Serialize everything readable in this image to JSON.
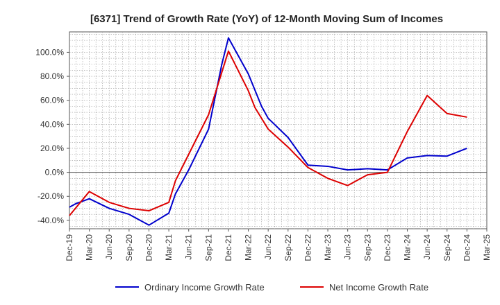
{
  "chart_data": {
    "type": "line",
    "title": "[6371]  Trend of Growth Rate (YoY) of 12-Month Moving Sum of Incomes",
    "x": [
      "Dec-19",
      "Mar-20",
      "Jun-20",
      "Sep-20",
      "Dec-20",
      "Mar-21",
      "Jun-21",
      "Sep-21",
      "Dec-21",
      "Mar-22",
      "Jun-22",
      "Sep-22",
      "Dec-22",
      "Mar-23",
      "Jun-23",
      "Sep-23",
      "Dec-23",
      "Mar-24",
      "Jun-24",
      "Sep-24",
      "Dec-24",
      "Mar-25"
    ],
    "series": [
      {
        "name": "Ordinary Income Growth Rate",
        "color": "#0000cc",
        "points": [
          [
            "Dec-19",
            -29
          ],
          [
            "Jan-20",
            -26
          ],
          [
            "Mar-20",
            -22
          ],
          [
            "Jun-20",
            -30
          ],
          [
            "Sep-20",
            -35
          ],
          [
            "Dec-20",
            -44
          ],
          [
            "Mar-21",
            -34
          ],
          [
            "Apr-21",
            -18
          ],
          [
            "Jun-21",
            2
          ],
          [
            "Sep-21",
            36
          ],
          [
            "Nov-21",
            90
          ],
          [
            "Dec-21",
            112
          ],
          [
            "Mar-22",
            82
          ],
          [
            "May-22",
            55
          ],
          [
            "Jun-22",
            45
          ],
          [
            "Sep-22",
            29
          ],
          [
            "Dec-22",
            6
          ],
          [
            "Mar-23",
            5
          ],
          [
            "Jun-23",
            2
          ],
          [
            "Sep-23",
            3
          ],
          [
            "Dec-23",
            2
          ],
          [
            "Mar-24",
            12
          ],
          [
            "Jun-24",
            14
          ],
          [
            "Sep-24",
            13.5
          ],
          [
            "Dec-24",
            20
          ]
        ]
      },
      {
        "name": "Net Income Growth Rate",
        "color": "#dd0000",
        "points": [
          [
            "Dec-19",
            -36
          ],
          [
            "Mar-20",
            -16
          ],
          [
            "Jun-20",
            -25
          ],
          [
            "Sep-20",
            -30
          ],
          [
            "Dec-20",
            -32
          ],
          [
            "Mar-21",
            -25
          ],
          [
            "Apr-21",
            -7
          ],
          [
            "Jun-21",
            15
          ],
          [
            "Sep-21",
            48
          ],
          [
            "Dec-21",
            101
          ],
          [
            "Mar-22",
            68
          ],
          [
            "Apr-22",
            54
          ],
          [
            "Jun-22",
            36
          ],
          [
            "Sep-22",
            21
          ],
          [
            "Dec-22",
            4
          ],
          [
            "Mar-23",
            -5
          ],
          [
            "Jun-23",
            -11
          ],
          [
            "Sep-23",
            -2
          ],
          [
            "Dec-23",
            0
          ],
          [
            "Mar-24",
            34
          ],
          [
            "Jun-24",
            64
          ],
          [
            "Sep-24",
            49
          ],
          [
            "Dec-24",
            46
          ]
        ]
      }
    ],
    "y_ticks": [
      "-40.0%",
      "-20.0%",
      "0.0%",
      "20.0%",
      "40.0%",
      "60.0%",
      "80.0%",
      "100.0%"
    ],
    "y_tick_values": [
      -40,
      -20,
      0,
      20,
      40,
      60,
      80,
      100
    ],
    "ylim": [
      -47,
      117
    ],
    "xlim": [
      "Dec-19",
      "Mar-25"
    ],
    "grid": true,
    "legend": "bottom"
  }
}
